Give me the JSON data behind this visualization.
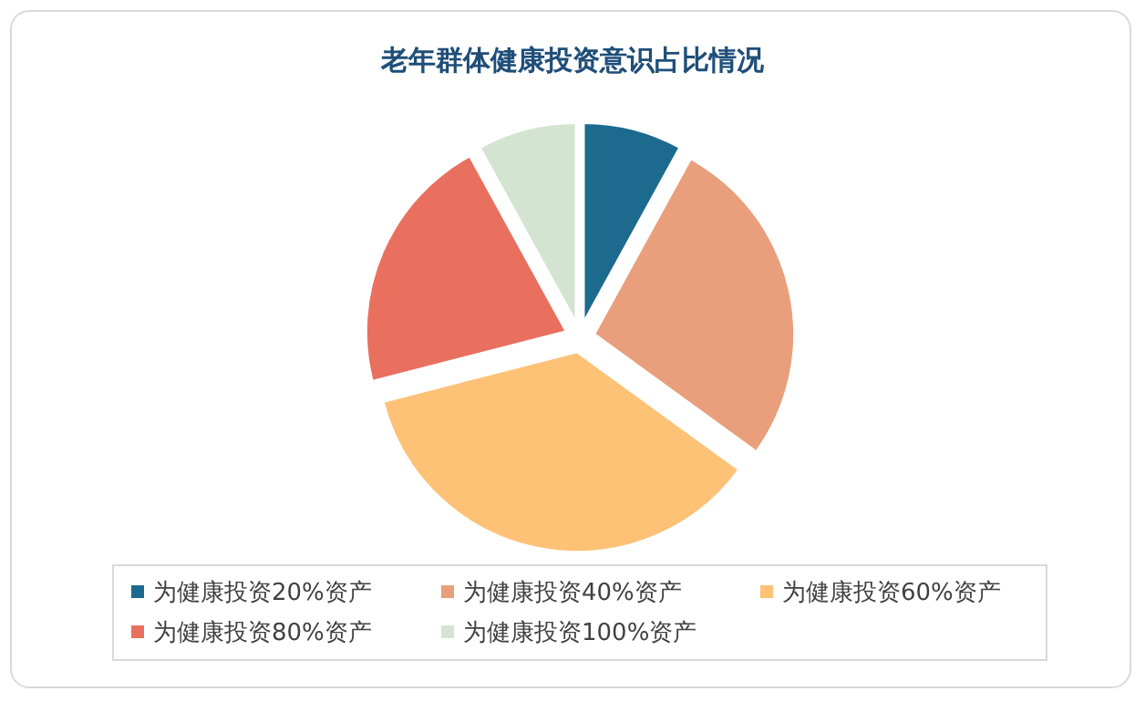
{
  "chart_data": {
    "type": "pie",
    "title": "老年群体健康投资意识占比情况",
    "categories": [
      "为健康投资20%资产",
      "为健康投资40%资产",
      "为健康投资60%资产",
      "为健康投资80%资产",
      "为健康投资100%资产"
    ],
    "values": [
      8,
      27,
      36,
      21,
      8
    ],
    "colors": [
      "#1d6a8f",
      "#e99f7c",
      "#fdc276",
      "#e9705f",
      "#d3e4d1"
    ],
    "legend": "bottom"
  }
}
